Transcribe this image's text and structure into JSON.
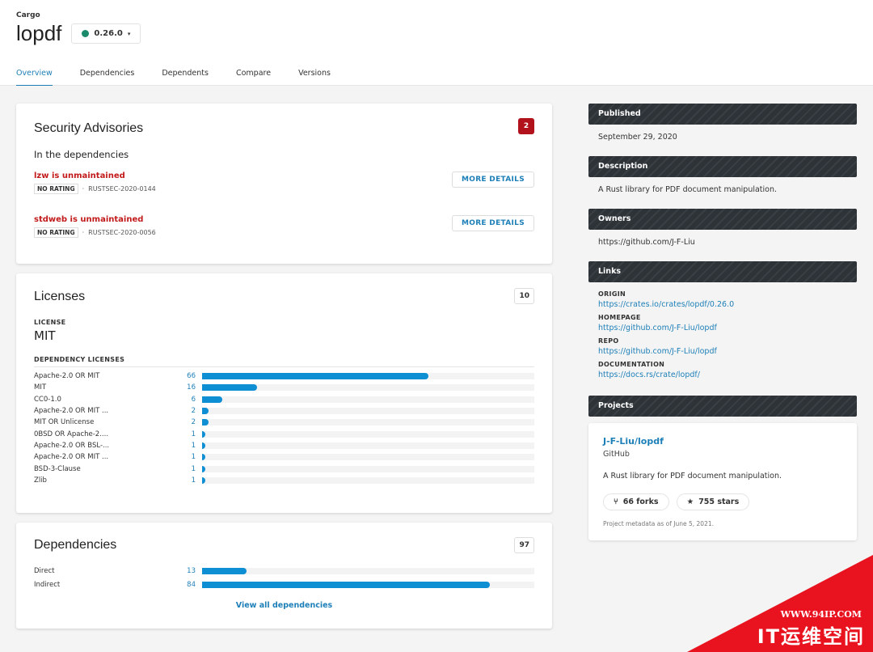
{
  "header": {
    "ecosystem": "Cargo",
    "package": "lopdf",
    "version": "0.26.0"
  },
  "tabs": [
    "Overview",
    "Dependencies",
    "Dependents",
    "Compare",
    "Versions"
  ],
  "advisories": {
    "title": "Security Advisories",
    "count": "2",
    "subtitle": "In the dependencies",
    "items": [
      {
        "title": "lzw is unmaintained",
        "rating": "NO RATING",
        "id": "RUSTSEC-2020-0144",
        "button": "MORE DETAILS"
      },
      {
        "title": "stdweb is unmaintained",
        "rating": "NO RATING",
        "id": "RUSTSEC-2020-0056",
        "button": "MORE DETAILS"
      }
    ]
  },
  "licenses": {
    "title": "Licenses",
    "count": "10",
    "license_label": "LICENSE",
    "license": "MIT",
    "dep_label": "DEPENDENCY LICENSES",
    "total": 97,
    "items": [
      {
        "name": "Apache-2.0 OR MIT",
        "value": 66
      },
      {
        "name": "MIT",
        "value": 16
      },
      {
        "name": "CC0-1.0",
        "value": 6
      },
      {
        "name": "Apache-2.0 OR MIT ...",
        "value": 2
      },
      {
        "name": "MIT OR Unlicense",
        "value": 2
      },
      {
        "name": "0BSD OR Apache-2....",
        "value": 1
      },
      {
        "name": "Apache-2.0 OR BSL-...",
        "value": 1
      },
      {
        "name": "Apache-2.0 OR MIT ...",
        "value": 1
      },
      {
        "name": "BSD-3-Clause",
        "value": 1
      },
      {
        "name": "Zlib",
        "value": 1
      }
    ]
  },
  "dependencies": {
    "title": "Dependencies",
    "count": "97",
    "total": 97,
    "items": [
      {
        "name": "Direct",
        "value": 13
      },
      {
        "name": "Indirect",
        "value": 84
      }
    ],
    "link": "View all dependencies"
  },
  "sidebar": {
    "published": {
      "label": "Published",
      "value": "September 29, 2020"
    },
    "description": {
      "label": "Description",
      "value": "A Rust library for PDF document manipulation."
    },
    "owners": {
      "label": "Owners",
      "value": "https://github.com/J-F-Liu"
    },
    "links": {
      "label": "Links",
      "items": [
        {
          "k": "ORIGIN",
          "v": "https://crates.io/crates/lopdf/0.26.0"
        },
        {
          "k": "HOMEPAGE",
          "v": "https://github.com/J-F-Liu/lopdf"
        },
        {
          "k": "REPO",
          "v": "https://github.com/J-F-Liu/lopdf"
        },
        {
          "k": "DOCUMENTATION",
          "v": "https://docs.rs/crate/lopdf/"
        }
      ]
    },
    "projects": {
      "label": "Projects",
      "name": "J-F-Liu/lopdf",
      "host": "GitHub",
      "desc": "A Rust library for PDF document manipulation.",
      "forks": "66 forks",
      "stars": "755 stars",
      "meta": "Project metadata as of June 5, 2021."
    }
  },
  "watermark": {
    "url": "WWW.94IP.COM",
    "text": "IT运维空间"
  }
}
